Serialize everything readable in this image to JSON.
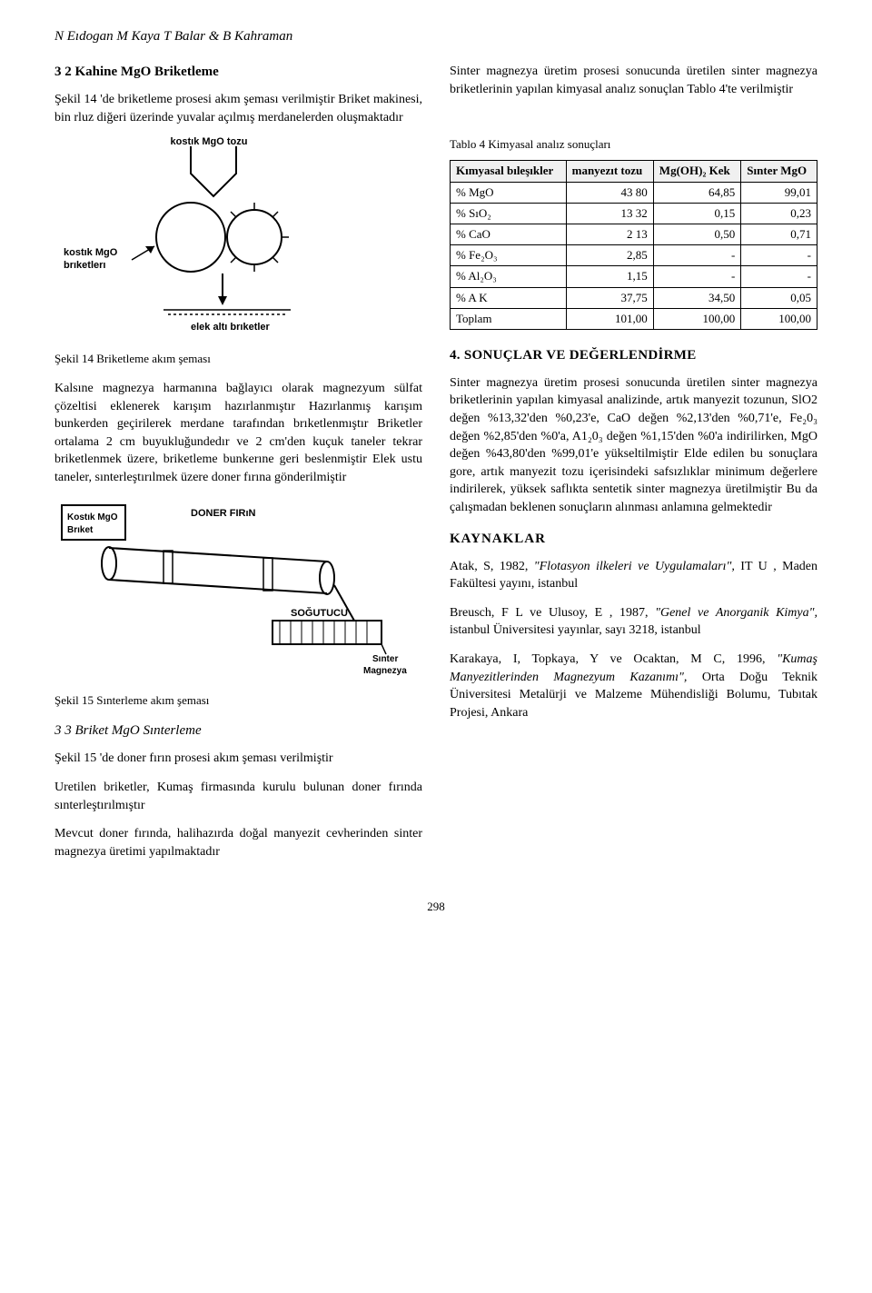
{
  "authors": "N Eıdogan  M Kaya  T Balar & B Kahraman",
  "left": {
    "sec32_title": "3 2   Kahine MgO Briketleme",
    "p1": "Şekil 14 'de briketleme prosesi akım şeması verilmiştir Briket makinesi, bin rluz diğeri üzerinde yuvalar açılmış merdanelerden oluşmaktadır",
    "fig14": {
      "label_top": "kostık MgO tozu",
      "label_left": "kostık MgO\nbrıketlerı",
      "label_bottom": "elek altı brıketler",
      "caption": "Şekil 14 Briketleme akım şeması"
    },
    "p2": "Kalsıne magnezya harmanına bağlayıcı olarak magnezyum sülfat çözeltisi eklenerek karışım hazırlanmıştır Hazırlanmış karışım bunkerden geçirilerek merdane tarafından brıketlenmıştır Briketler ortalama 2 cm buyukluğundedır ve 2 cm'den kuçuk taneler tekrar briketlenmek üzere, briketleme bunkerıne geri beslenmiştir Elek ustu taneler, sınterleştırılmek üzere doner fırına gönderilmiştir",
    "fig15": {
      "label_briket": "Kostık MgO\nBrıket",
      "label_firin": "DONER FIRıN",
      "label_sogutucu": "SOĞUTUCU",
      "label_out": "Sınter\nMagnezya",
      "caption": "Şekil 15 Sınterleme akım şeması"
    },
    "sec33_title": "3 3    Briket MgO Sınterleme",
    "p3": "Şekil 15 'de doner fırın prosesi akım şeması verilmiştir",
    "p4": "Uretilen briketler, Kumaş firmasında kurulu bulunan doner fırında sınterleştırılmıştır",
    "p5": "Mevcut doner fırında, halihazırda doğal manyezit cevherinden sinter magnezya üretimi yapılmaktadır"
  },
  "right": {
    "p1": "Sinter magnezya üretim prosesi sonucunda üretilen sinter magnezya briketlerinin yapılan kimyasal analız sonuçlan Tablo 4'te verilmiştir",
    "table4": {
      "caption": "Tablo 4 Kimyasal analız sonuçları",
      "columns": [
        "Kımyasal bıleşıkler",
        "manyezıt tozu",
        "Mg(OH)₂ Kek",
        "Sınter MgO"
      ],
      "rows": [
        [
          "% MgO",
          "43 80",
          "64,85",
          "99,01"
        ],
        [
          "% SıO₂",
          "13 32",
          "0,15",
          "0,23"
        ],
        [
          "% CaO",
          "2 13",
          "0,50",
          "0,71"
        ],
        [
          "% Fe₂O₃",
          "2,85",
          "-",
          "-"
        ],
        [
          "% Al₂O₃",
          "1,15",
          "-",
          "-"
        ],
        [
          "% A K",
          "37,75",
          "34,50",
          "0,05"
        ],
        [
          "Toplam",
          "101,00",
          "100,00",
          "100,00"
        ]
      ]
    },
    "sec4_title": "4.  SONUÇLAR VE DEĞERLENDİRME",
    "p2": "Sinter magnezya üretim prosesi sonucunda üretilen sinter magnezya briketlerinin yapılan kimyasal analizinde, artık manyezit tozunun, SlO2 değen %13,32'den %0,23'e, CaO değen %2,13'den %0,71'e, Fe₂0₃ değen %2,85'den %0'a, A1₂0₃ değen %1,15'den %0'a indirilirken, MgO değen %43,80'den %99,01'e yükseltilmiştir Elde edilen bu sonuçlara gore, artık manyezit tozu içerisindeki safsızlıklar minimum değerlere indirilerek, yüksek saflıkta sentetik sinter magnezya üretilmiştir Bu da çalışmadan beklenen sonuçların alınması anlamına gelmektedir",
    "refs_title": "KAYNAKLAR",
    "ref1_a": "Atak, S, 1982, ",
    "ref1_i": "\"Flotasyon ilkeleri ve Uygulamaları\",",
    "ref1_b": " IT U , Maden Fakültesi yayını, istanbul",
    "ref2_a": "Breusch, F L  ve Ulusoy, E , 1987, ",
    "ref2_i": "\"Genel ve Anorganik Kimya\",",
    "ref2_b": " istanbul Üniversitesi yayınlar, sayı 3218, istanbul",
    "ref3_a": "Karakaya, I, Topkaya, Y ve Ocaktan, M C, 1996, ",
    "ref3_i": "\"Kumaş Manyezitlerinden Magnezyum Kazanımı\",",
    "ref3_b": " Orta Doğu Teknik Üniversitesi Metalürji ve Malzeme Mühendisliği Bolumu, Tubıtak Projesi, Ankara"
  },
  "page_number": "298"
}
